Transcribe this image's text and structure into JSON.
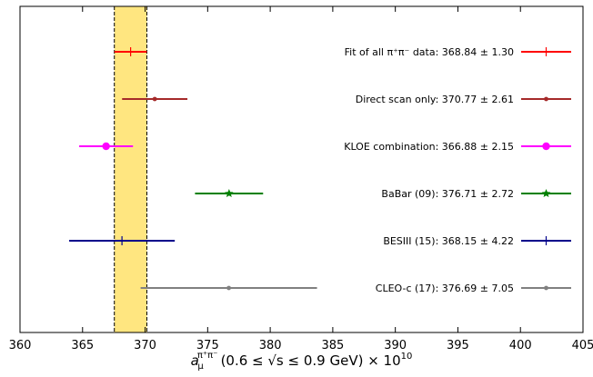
{
  "chart_data": {
    "type": "scatter",
    "subtype": "errorbar-comparison",
    "xlabel": "a_μ^{π⁺π⁻} (0.6 ≤ √s ≤ 0.9 GeV) × 10¹⁰",
    "xlabel_parts": {
      "a": "a",
      "sub": "μ",
      "sup": "π⁺π⁻",
      "rest": "(0.6 ≤ √s ≤ 0.9 GeV) × 10",
      "exp": "10"
    },
    "xlim": [
      360,
      405
    ],
    "xticks": [
      360,
      365,
      370,
      375,
      380,
      385,
      390,
      395,
      400,
      405
    ],
    "yticks_shown": false,
    "grid": false,
    "legend_placement": "right, inline with each row",
    "band": {
      "center": 368.84,
      "error": 1.3,
      "color": "#ffe680",
      "edge_color": "#000000",
      "edge_style": "dashed"
    },
    "series": [
      {
        "name": "Fit of all π⁺π⁻ data: 368.84 ± 1.30",
        "value": 368.84,
        "error": 1.3,
        "color": "#ff0000",
        "marker": "plus"
      },
      {
        "name": "Direct scan only: 370.77 ± 2.61",
        "value": 370.77,
        "error": 2.61,
        "color": "#a52a2a",
        "marker": "dot"
      },
      {
        "name": "KLOE combination: 366.88 ± 2.15",
        "value": 366.88,
        "error": 2.15,
        "color": "#ff00ff",
        "marker": "circle"
      },
      {
        "name": "BaBar (09): 376.71 ± 2.72",
        "value": 376.71,
        "error": 2.72,
        "color": "#008000",
        "marker": "star"
      },
      {
        "name": "BESIII (15): 368.15 ± 4.22",
        "value": 368.15,
        "error": 4.22,
        "color": "#00008b",
        "marker": "plus"
      },
      {
        "name": "CLEO-c (17): 376.69 ± 7.05",
        "value": 376.69,
        "error": 7.05,
        "color": "#808080",
        "marker": "dot"
      }
    ]
  }
}
